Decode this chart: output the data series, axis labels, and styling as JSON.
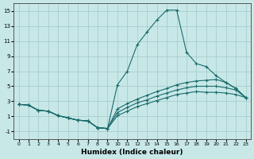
{
  "xlabel": "Humidex (Indice chaleur)",
  "background_color": "#c8e8e8",
  "grid_color": "#a8cccc",
  "line_color": "#1a6b6b",
  "xlim": [
    -0.5,
    23.5
  ],
  "ylim": [
    -2.0,
    16.0
  ],
  "xticks": [
    0,
    1,
    2,
    3,
    4,
    5,
    6,
    7,
    8,
    9,
    10,
    11,
    12,
    13,
    14,
    15,
    16,
    17,
    18,
    19,
    20,
    21,
    22,
    23
  ],
  "yticks": [
    -1,
    1,
    3,
    5,
    7,
    9,
    11,
    13,
    15
  ],
  "lines": [
    {
      "x": [
        0,
        1,
        2,
        3,
        4,
        5,
        6,
        7,
        8,
        9,
        10,
        11,
        12,
        13,
        14,
        15,
        16,
        17,
        18,
        19,
        20,
        21,
        22,
        23
      ],
      "y": [
        2.6,
        2.5,
        1.8,
        1.7,
        1.1,
        0.8,
        0.5,
        0.4,
        -0.5,
        -0.6,
        5.2,
        7.0,
        10.5,
        12.2,
        13.8,
        15.1,
        15.1,
        9.5,
        8.0,
        7.6,
        6.4,
        5.5,
        4.7,
        3.5
      ]
    },
    {
      "x": [
        0,
        1,
        2,
        3,
        4,
        5,
        6,
        7,
        8,
        9,
        10,
        11,
        12,
        13,
        14,
        15,
        16,
        17,
        18,
        19,
        20,
        21,
        22,
        23
      ],
      "y": [
        2.6,
        2.5,
        1.8,
        1.7,
        1.1,
        0.8,
        0.5,
        0.4,
        -0.5,
        -0.6,
        2.0,
        2.7,
        3.3,
        3.8,
        4.3,
        4.7,
        5.2,
        5.5,
        5.7,
        5.8,
        5.9,
        5.5,
        4.7,
        3.5
      ]
    },
    {
      "x": [
        0,
        1,
        2,
        3,
        4,
        5,
        6,
        7,
        8,
        9,
        10,
        11,
        12,
        13,
        14,
        15,
        16,
        17,
        18,
        19,
        20,
        21,
        22,
        23
      ],
      "y": [
        2.6,
        2.5,
        1.8,
        1.7,
        1.1,
        0.8,
        0.5,
        0.4,
        -0.5,
        -0.6,
        1.5,
        2.2,
        2.8,
        3.2,
        3.7,
        4.1,
        4.5,
        4.8,
        5.0,
        5.0,
        5.0,
        4.8,
        4.5,
        3.5
      ]
    },
    {
      "x": [
        0,
        1,
        2,
        3,
        4,
        5,
        6,
        7,
        8,
        9,
        10,
        11,
        12,
        13,
        14,
        15,
        16,
        17,
        18,
        19,
        20,
        21,
        22,
        23
      ],
      "y": [
        2.6,
        2.5,
        1.8,
        1.7,
        1.1,
        0.8,
        0.5,
        0.4,
        -0.5,
        -0.6,
        1.1,
        1.7,
        2.3,
        2.7,
        3.1,
        3.5,
        3.9,
        4.1,
        4.3,
        4.2,
        4.2,
        4.1,
        3.9,
        3.5
      ]
    }
  ]
}
